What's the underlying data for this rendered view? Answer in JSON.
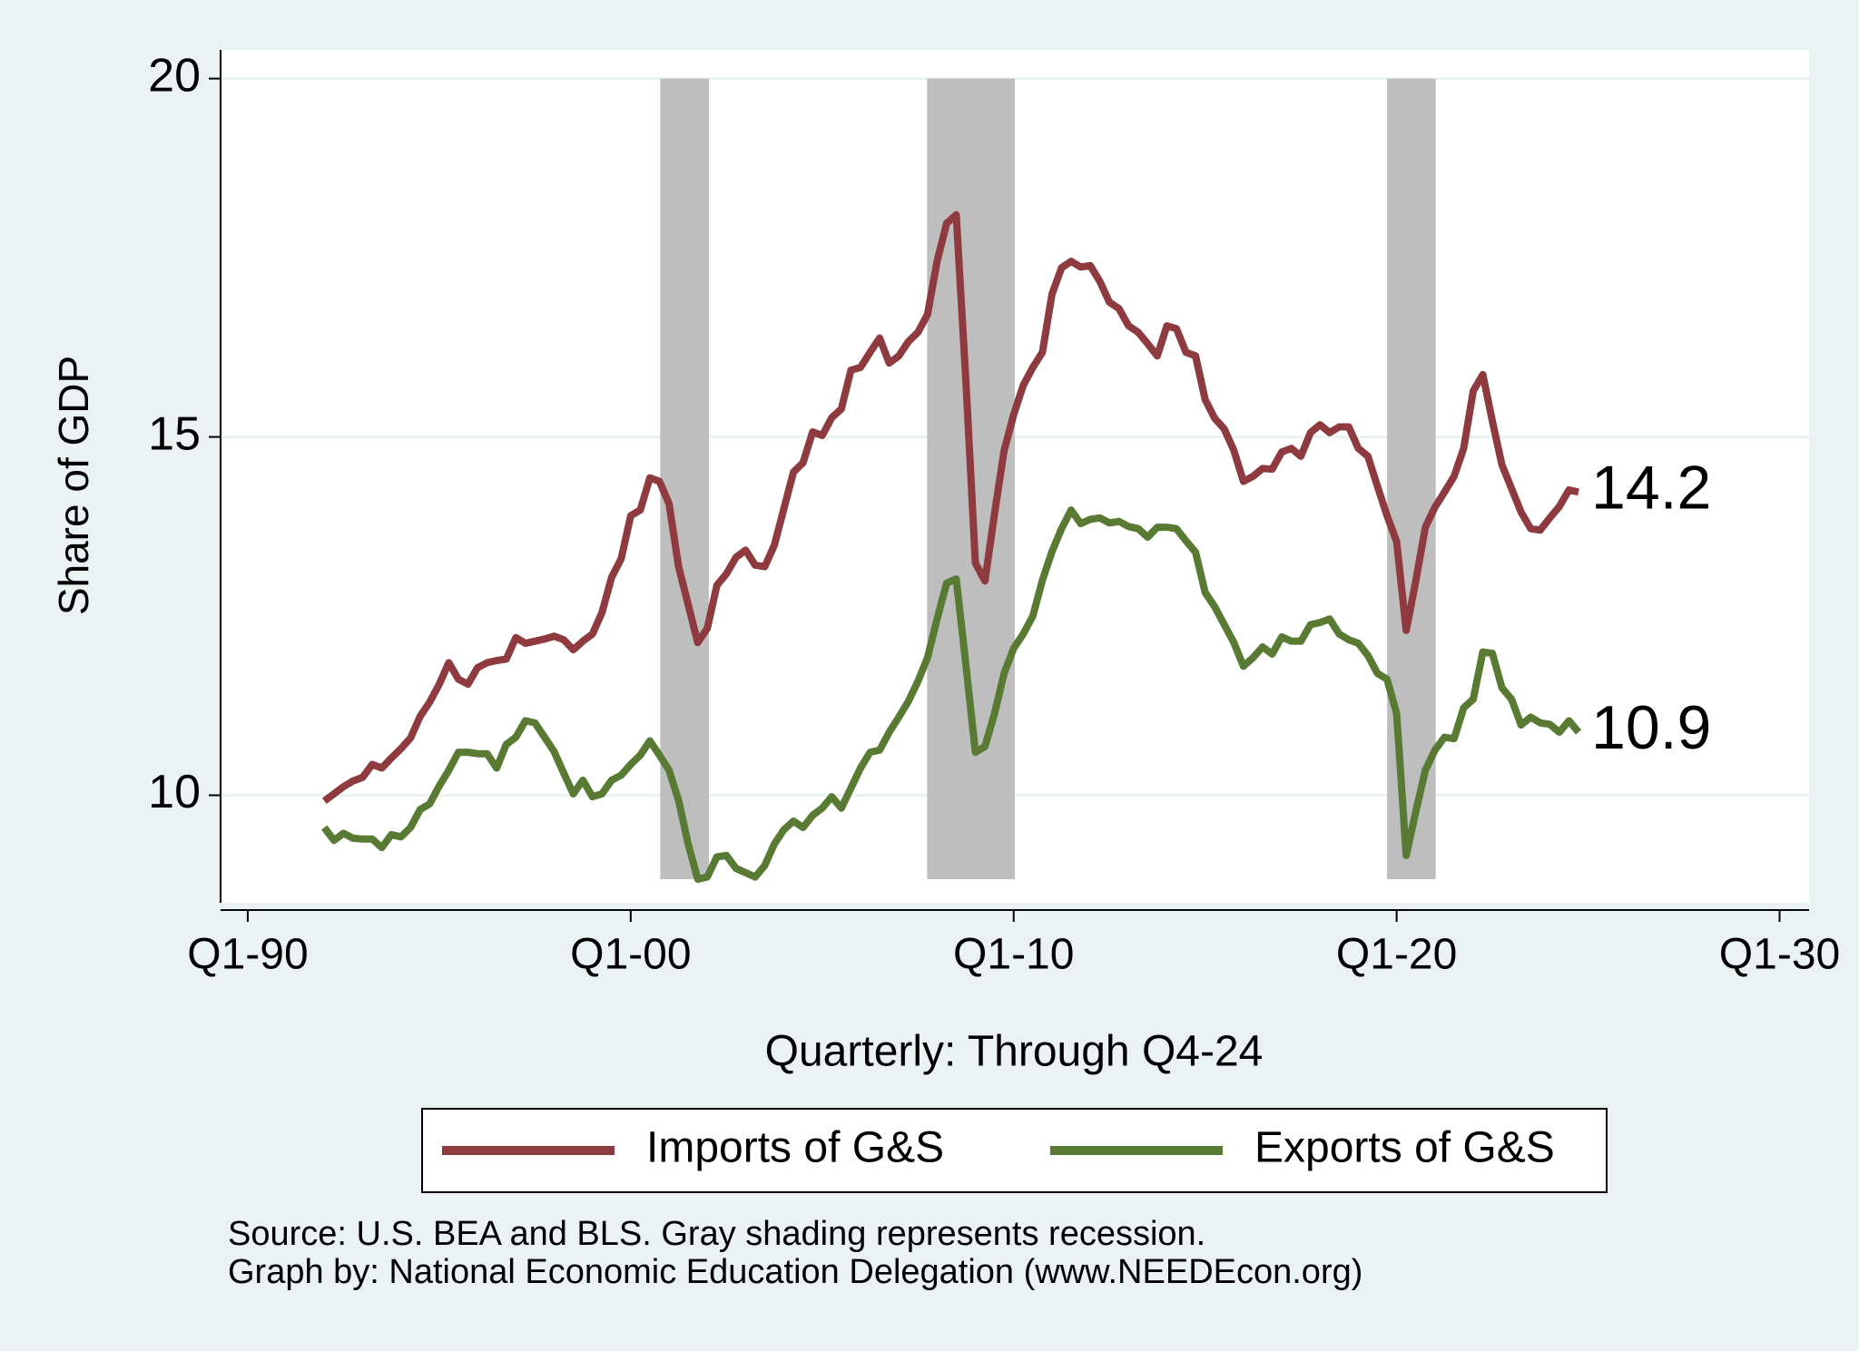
{
  "chart_data": {
    "type": "line",
    "y_label": "Share of GDP",
    "x_label": "Quarterly: Through Q4-24",
    "notes": [
      "Source: U.S. BEA and BLS.  Gray shading represents recession.",
      "Graph by: National Economic Education Delegation (www.NEEDEcon.org)"
    ],
    "xlim": [
      1989.29,
      2030.77
    ],
    "ylim": [
      8.5,
      20.4
    ],
    "xticks": [
      {
        "value": 1990,
        "label": "Q1-90"
      },
      {
        "value": 2000,
        "label": "Q1-00"
      },
      {
        "value": 2010,
        "label": "Q1-10"
      },
      {
        "value": 2020,
        "label": "Q1-20"
      },
      {
        "value": 2030,
        "label": "Q1-30"
      }
    ],
    "yticks": [
      10,
      15,
      20
    ],
    "grid": true,
    "legend": "bottom",
    "shading": {
      "color": "#bebebe",
      "ylim": [
        8.83,
        20
      ],
      "ranges": [
        [
          2000.77,
          2002.04
        ],
        [
          2007.74,
          2010.03
        ],
        [
          2019.75,
          2021.02
        ]
      ]
    },
    "x": [
      1992,
      1992.25,
      1992.5,
      1992.75,
      1993,
      1993.25,
      1993.5,
      1993.75,
      1994,
      1994.25,
      1994.5,
      1994.75,
      1995,
      1995.25,
      1995.5,
      1995.75,
      1996,
      1996.25,
      1996.5,
      1996.75,
      1997,
      1997.25,
      1997.5,
      1997.75,
      1998,
      1998.25,
      1998.5,
      1998.75,
      1999,
      1999.25,
      1999.5,
      1999.75,
      2000,
      2000.25,
      2000.5,
      2000.75,
      2001,
      2001.25,
      2001.5,
      2001.75,
      2002,
      2002.25,
      2002.5,
      2002.75,
      2003,
      2003.25,
      2003.5,
      2003.75,
      2004,
      2004.25,
      2004.5,
      2004.75,
      2005,
      2005.25,
      2005.5,
      2005.75,
      2006,
      2006.25,
      2006.5,
      2006.75,
      2007,
      2007.25,
      2007.5,
      2007.75,
      2008,
      2008.25,
      2008.5,
      2008.75,
      2009,
      2009.25,
      2009.5,
      2009.75,
      2010,
      2010.25,
      2010.5,
      2010.75,
      2011,
      2011.25,
      2011.5,
      2011.75,
      2012,
      2012.25,
      2012.5,
      2012.75,
      2013,
      2013.25,
      2013.5,
      2013.75,
      2014,
      2014.25,
      2014.5,
      2014.75,
      2015,
      2015.25,
      2015.5,
      2015.75,
      2016,
      2016.25,
      2016.5,
      2016.75,
      2017,
      2017.25,
      2017.5,
      2017.75,
      2018,
      2018.25,
      2018.5,
      2018.75,
      2019,
      2019.25,
      2019.5,
      2019.75,
      2020,
      2020.25,
      2020.5,
      2020.75,
      2021,
      2021.25,
      2021.5,
      2021.75,
      2022,
      2022.25,
      2022.5,
      2022.75,
      2023,
      2023.25,
      2023.5,
      2023.75,
      2024,
      2024.25,
      2024.5,
      2024.75
    ],
    "series": [
      {
        "name": "Imports of G&S",
        "color": "#8e3a3e",
        "end_label": "14.2",
        "values": [
          9.92,
          10.02,
          10.12,
          10.2,
          10.25,
          10.43,
          10.38,
          10.52,
          10.65,
          10.8,
          11.1,
          11.3,
          11.55,
          11.85,
          11.62,
          11.55,
          11.78,
          11.85,
          11.88,
          11.9,
          12.2,
          12.12,
          12.15,
          12.18,
          12.22,
          12.17,
          12.03,
          12.15,
          12.25,
          12.55,
          13.04,
          13.3,
          13.9,
          13.98,
          14.43,
          14.38,
          14.07,
          13.19,
          12.66,
          12.13,
          12.33,
          12.93,
          13.09,
          13.32,
          13.42,
          13.21,
          13.19,
          13.49,
          14.0,
          14.51,
          14.64,
          15.07,
          15.02,
          15.27,
          15.39,
          15.93,
          15.97,
          16.18,
          16.38,
          16.03,
          16.13,
          16.33,
          16.46,
          16.71,
          17.45,
          17.98,
          18.1,
          15.8,
          13.24,
          12.99,
          13.93,
          14.81,
          15.31,
          15.72,
          15.97,
          16.18,
          16.99,
          17.36,
          17.45,
          17.37,
          17.39,
          17.17,
          16.88,
          16.79,
          16.55,
          16.46,
          16.3,
          16.13,
          16.55,
          16.51,
          16.18,
          16.13,
          15.52,
          15.26,
          15.11,
          14.81,
          14.38,
          14.45,
          14.56,
          14.55,
          14.79,
          14.84,
          14.73,
          15.06,
          15.17,
          15.06,
          15.14,
          15.14,
          14.84,
          14.73,
          14.31,
          13.9,
          13.54,
          12.3,
          12.99,
          13.74,
          14.02,
          14.23,
          14.45,
          14.84,
          15.64,
          15.87,
          15.22,
          14.61,
          14.28,
          13.95,
          13.72,
          13.7,
          13.87,
          14.03,
          14.26,
          14.23
        ]
      },
      {
        "name": "Exports of G&S",
        "color": "#587a33",
        "end_label": "10.9",
        "values": [
          9.55,
          9.37,
          9.47,
          9.4,
          9.39,
          9.39,
          9.27,
          9.45,
          9.42,
          9.55,
          9.8,
          9.88,
          10.13,
          10.35,
          10.6,
          10.6,
          10.58,
          10.58,
          10.38,
          10.71,
          10.81,
          11.04,
          11.01,
          10.81,
          10.61,
          10.31,
          10.02,
          10.21,
          9.98,
          10.02,
          10.21,
          10.28,
          10.43,
          10.56,
          10.76,
          10.56,
          10.35,
          9.93,
          9.32,
          8.83,
          8.86,
          9.14,
          9.16,
          8.98,
          8.92,
          8.86,
          9.02,
          9.32,
          9.52,
          9.64,
          9.55,
          9.72,
          9.82,
          9.98,
          9.82,
          10.1,
          10.38,
          10.6,
          10.63,
          10.88,
          11.09,
          11.31,
          11.59,
          11.92,
          12.46,
          12.96,
          13.02,
          11.83,
          10.6,
          10.68,
          11.14,
          11.7,
          12.05,
          12.25,
          12.5,
          13.0,
          13.4,
          13.72,
          13.98,
          13.79,
          13.85,
          13.87,
          13.8,
          13.82,
          13.75,
          13.72,
          13.6,
          13.74,
          13.74,
          13.72,
          13.55,
          13.39,
          12.83,
          12.63,
          12.38,
          12.13,
          11.8,
          11.92,
          12.07,
          11.97,
          12.21,
          12.15,
          12.15,
          12.38,
          12.41,
          12.46,
          12.25,
          12.17,
          12.12,
          11.95,
          11.7,
          11.62,
          11.14,
          9.16,
          9.77,
          10.35,
          10.63,
          10.81,
          10.79,
          11.22,
          11.34,
          12.0,
          11.98,
          11.5,
          11.34,
          10.98,
          11.09,
          11.01,
          10.99,
          10.88,
          11.04,
          10.88
        ]
      }
    ]
  }
}
